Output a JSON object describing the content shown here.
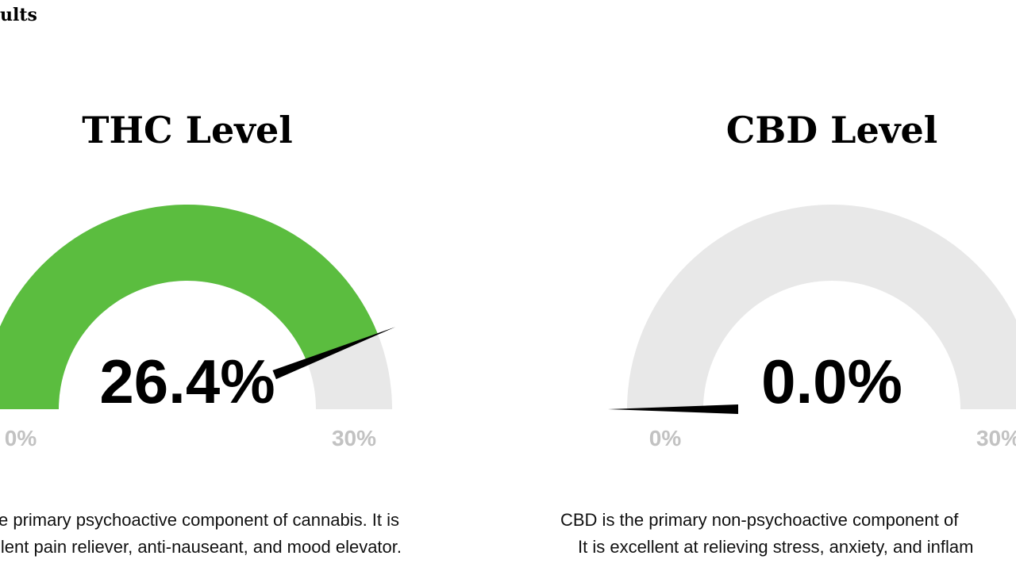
{
  "header": {
    "title": "ults"
  },
  "chart_data": [
    {
      "type": "gauge",
      "title": "THC Level",
      "values": [
        26.4
      ],
      "value_labels": [
        "26.4%"
      ],
      "ylim": [
        0,
        30
      ],
      "yticks": [
        {
          "value": 0,
          "label": "0%"
        },
        {
          "value": 30,
          "label": "30%"
        }
      ],
      "color": "#5bbd3f",
      "track_color": "#e8e8e8",
      "description": [
        "e primary psychoactive component of cannabis. It is",
        "llent pain reliever, anti-nauseant, and mood elevator."
      ]
    },
    {
      "type": "gauge",
      "title": "CBD Level",
      "values": [
        0.0
      ],
      "value_labels": [
        "0.0%"
      ],
      "ylim": [
        0,
        30
      ],
      "yticks": [
        {
          "value": 0,
          "label": "0%"
        },
        {
          "value": 30,
          "label": "30%"
        }
      ],
      "color": "#5bbd3f",
      "track_color": "#e8e8e8",
      "description": [
        "CBD is the primary non-psychoactive component of",
        "It is excellent at relieving stress, anxiety, and inflam"
      ]
    }
  ]
}
